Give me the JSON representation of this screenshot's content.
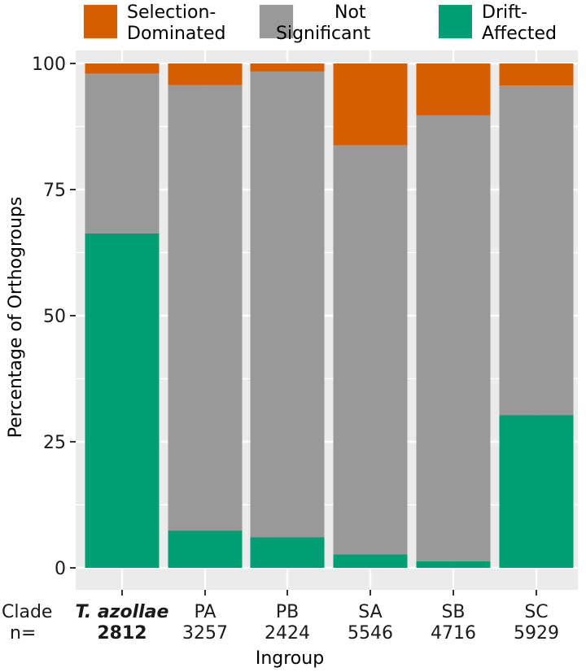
{
  "chart_data": {
    "type": "bar",
    "stacked": true,
    "xlabel": "Ingroup",
    "ylabel": "Percentage of Orthogroups",
    "ylim": [
      0,
      100
    ],
    "yticks": [
      0,
      25,
      50,
      75,
      100
    ],
    "grid": true,
    "legend_position": "top",
    "row_labels": {
      "clade": "Clade",
      "n": "n="
    },
    "categories": [
      "T. azollae",
      "PA",
      "PB",
      "SA",
      "SB",
      "SC"
    ],
    "n_values": [
      "2812",
      "3257",
      "2424",
      "5546",
      "4716",
      "5929"
    ],
    "highlight_category": "T. azollae",
    "series": [
      {
        "name": "Drift-Affected",
        "color": "#009E73",
        "values": [
          66.3,
          7.4,
          6.1,
          2.7,
          1.3,
          30.3
        ]
      },
      {
        "name": "Not Significant",
        "color": "#999999",
        "values": [
          31.7,
          88.3,
          92.3,
          81.1,
          88.4,
          65.3
        ]
      },
      {
        "name": "Selection-Dominated",
        "color": "#D55E00",
        "values": [
          2.0,
          4.3,
          1.6,
          16.2,
          10.3,
          4.4
        ]
      }
    ],
    "legend": [
      {
        "series": "Selection-Dominated",
        "lines": [
          "Selection-",
          "Dominated"
        ],
        "color": "#D55E00"
      },
      {
        "series": "Not Significant",
        "lines": [
          "Not",
          "Significant"
        ],
        "color": "#999999"
      },
      {
        "series": "Drift-Affected",
        "lines": [
          "Drift-",
          "Affected"
        ],
        "color": "#009E73"
      }
    ]
  }
}
